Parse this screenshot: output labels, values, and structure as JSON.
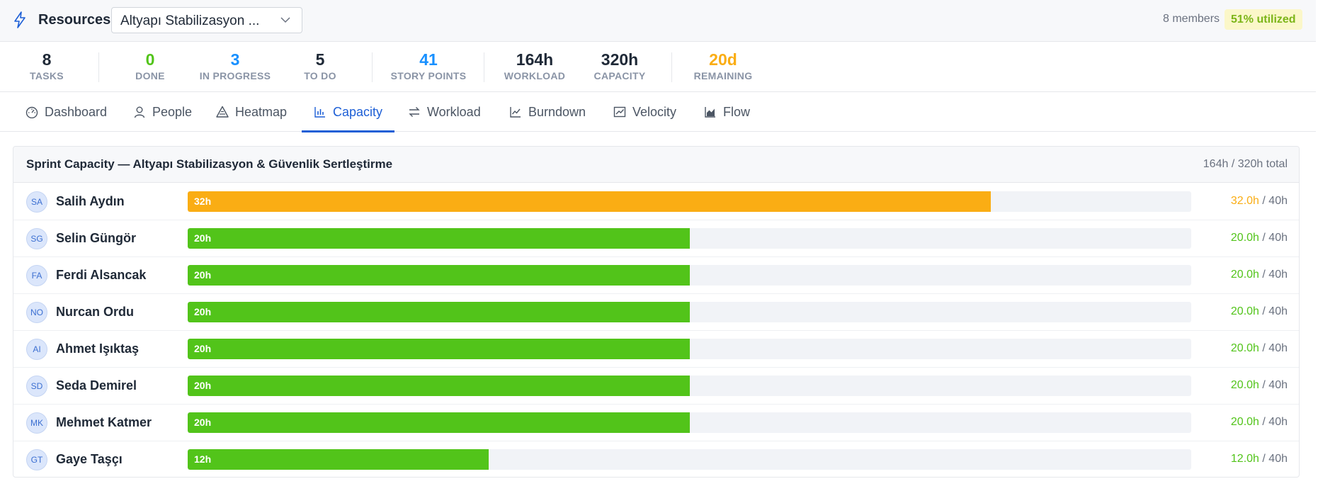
{
  "colors": {
    "accent": "#1d5fd6",
    "green": "#52c41a",
    "orange": "#faad14",
    "done": "#52c41a",
    "in_progress": "#1890ff",
    "story_points": "#1890ff",
    "remaining": "#faad14"
  },
  "header": {
    "icon": "bolt-icon",
    "title": "Resources",
    "sprint_select": "Altyapı Stabilizasyon ...",
    "members": "8 members",
    "utilization": "51% utilized"
  },
  "stats": [
    {
      "value": "8",
      "label": "TASKS"
    },
    {
      "value": "0",
      "label": "DONE"
    },
    {
      "value": "3",
      "label": "IN PROGRESS"
    },
    {
      "value": "5",
      "label": "TO DO"
    },
    {
      "value": "41",
      "label": "STORY POINTS"
    },
    {
      "value": "164h",
      "label": "WORKLOAD"
    },
    {
      "value": "320h",
      "label": "CAPACITY"
    },
    {
      "value": "20d",
      "label": "REMAINING"
    }
  ],
  "tabs": [
    {
      "label": "Dashboard",
      "icon": "dashboard-icon"
    },
    {
      "label": "People",
      "icon": "user-icon"
    },
    {
      "label": "Heatmap",
      "icon": "heatmap-icon"
    },
    {
      "label": "Capacity",
      "icon": "bar-chart-icon",
      "active": true
    },
    {
      "label": "Workload",
      "icon": "swap-icon"
    },
    {
      "label": "Burndown",
      "icon": "line-chart-icon"
    },
    {
      "label": "Velocity",
      "icon": "stock-chart-icon"
    },
    {
      "label": "Flow",
      "icon": "area-chart-icon"
    }
  ],
  "capacity": {
    "title": "Sprint Capacity — Altyapı Stabilizasyon & Güvenlik Sertleştirme",
    "total": "164h / 320h total",
    "rows": [
      {
        "initials": "SA",
        "name": "Salih Aydın",
        "bar_label": "32h",
        "hours": "32.0h",
        "capacity": "/ 40h",
        "hours_value": 32,
        "capacity_value": 40,
        "status": "orange"
      },
      {
        "initials": "SG",
        "name": "Selin Güngör",
        "bar_label": "20h",
        "hours": "20.0h",
        "capacity": "/ 40h",
        "hours_value": 20,
        "capacity_value": 40,
        "status": "green"
      },
      {
        "initials": "FA",
        "name": "Ferdi Alsancak",
        "bar_label": "20h",
        "hours": "20.0h",
        "capacity": "/ 40h",
        "hours_value": 20,
        "capacity_value": 40,
        "status": "green"
      },
      {
        "initials": "NO",
        "name": "Nurcan Ordu",
        "bar_label": "20h",
        "hours": "20.0h",
        "capacity": "/ 40h",
        "hours_value": 20,
        "capacity_value": 40,
        "status": "green"
      },
      {
        "initials": "AI",
        "name": "Ahmet Işıktaş",
        "bar_label": "20h",
        "hours": "20.0h",
        "capacity": "/ 40h",
        "hours_value": 20,
        "capacity_value": 40,
        "status": "green"
      },
      {
        "initials": "SD",
        "name": "Seda Demirel",
        "bar_label": "20h",
        "hours": "20.0h",
        "capacity": "/ 40h",
        "hours_value": 20,
        "capacity_value": 40,
        "status": "green"
      },
      {
        "initials": "MK",
        "name": "Mehmet Katmer",
        "bar_label": "20h",
        "hours": "20.0h",
        "capacity": "/ 40h",
        "hours_value": 20,
        "capacity_value": 40,
        "status": "green"
      },
      {
        "initials": "GT",
        "name": "Gaye Taşçı",
        "bar_label": "12h",
        "hours": "12.0h",
        "capacity": "/ 40h",
        "hours_value": 12,
        "capacity_value": 40,
        "status": "green"
      }
    ]
  }
}
